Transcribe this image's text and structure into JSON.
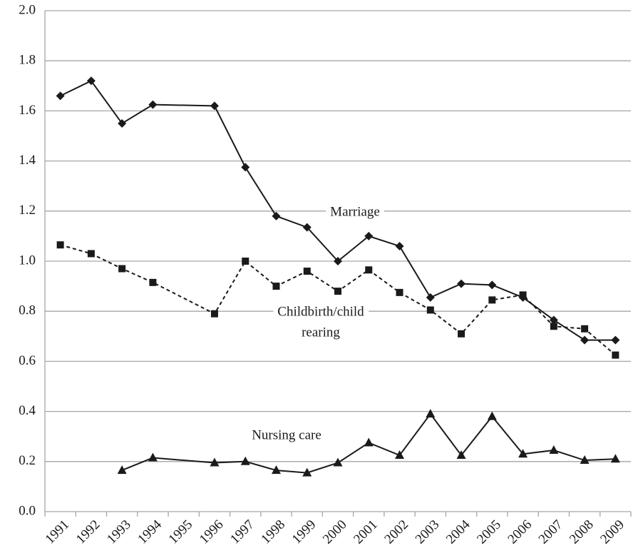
{
  "chart_data": {
    "type": "line",
    "categories": [
      "1991",
      "1992",
      "1993",
      "1994",
      "1995",
      "1996",
      "1997",
      "1998",
      "1999",
      "2000",
      "2001",
      "2002",
      "2003",
      "2004",
      "2005",
      "2006",
      "2007",
      "2008",
      "2009"
    ],
    "series": [
      {
        "name": "Marriage",
        "color": "#1a1a1a",
        "marker": "diamond",
        "dash": false,
        "values": [
          1.66,
          1.72,
          1.55,
          1.625,
          null,
          1.62,
          1.375,
          1.18,
          1.135,
          1.0,
          1.1,
          1.06,
          0.855,
          0.91,
          0.905,
          0.855,
          0.765,
          0.685,
          0.685
        ]
      },
      {
        "name": [
          "Childbirth/child",
          "rearing"
        ],
        "color": "#1a1a1a",
        "marker": "square",
        "dash": true,
        "values": [
          1.065,
          1.03,
          0.97,
          0.915,
          null,
          0.79,
          1.0,
          0.9,
          0.96,
          0.88,
          0.965,
          0.875,
          0.805,
          0.71,
          0.845,
          0.865,
          0.74,
          0.73,
          0.625
        ]
      },
      {
        "name": "Nursing care",
        "color": "#1a1a1a",
        "marker": "triangle",
        "dash": false,
        "values": [
          null,
          null,
          0.165,
          0.215,
          null,
          0.195,
          0.2,
          0.165,
          0.155,
          0.195,
          0.275,
          0.225,
          0.39,
          0.225,
          0.38,
          0.23,
          0.245,
          0.205,
          0.21
        ]
      }
    ],
    "span_gaps": true,
    "ylim": [
      0,
      2
    ],
    "yticks": [
      {
        "value": 0,
        "label": "0.0"
      },
      0.2,
      0.4,
      0.6,
      0.8,
      {
        "value": 1,
        "label": "1.0"
      },
      1.2,
      1.4,
      1.6,
      1.8,
      {
        "value": 2,
        "label": "2.0"
      }
    ],
    "grid": true
  }
}
